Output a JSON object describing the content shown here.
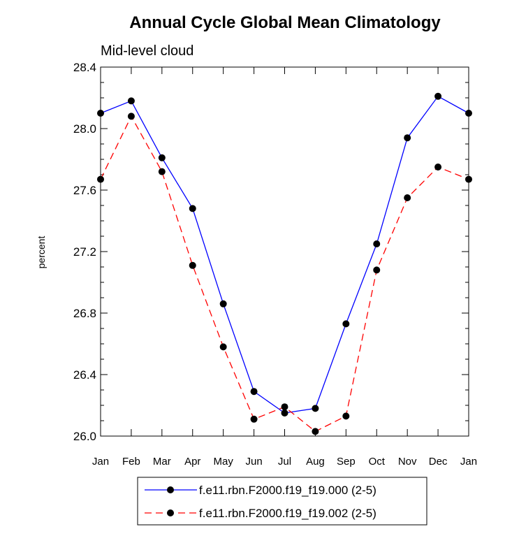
{
  "chart_data": {
    "type": "line",
    "title": "Annual Cycle Global Mean Climatology",
    "subtitle": "Mid-level cloud",
    "xlabel": "",
    "ylabel": "percent",
    "categories": [
      "Jan",
      "Feb",
      "Mar",
      "Apr",
      "May",
      "Jun",
      "Jul",
      "Aug",
      "Sep",
      "Oct",
      "Nov",
      "Dec",
      "Jan"
    ],
    "ylim": [
      26.0,
      28.4
    ],
    "yticks": [
      "26.0",
      "26.4",
      "26.8",
      "27.2",
      "27.6",
      "28.0",
      "28.4"
    ],
    "grid": false,
    "legend_position": "bottom-center",
    "series": [
      {
        "name": "f.e11.rbn.F2000.f19_f19.000 (2-5)",
        "color": "#0000ff",
        "dash": "solid",
        "marker": "filled-circle",
        "values": [
          28.1,
          28.18,
          27.81,
          27.48,
          26.86,
          26.29,
          26.15,
          26.18,
          26.73,
          27.25,
          27.94,
          28.21,
          28.1
        ]
      },
      {
        "name": "f.e11.rbn.F2000.f19_f19.002 (2-5)",
        "color": "#ff0000",
        "dash": "dashed",
        "marker": "filled-circle",
        "values": [
          27.67,
          28.08,
          27.72,
          27.11,
          26.58,
          26.11,
          26.19,
          26.03,
          26.13,
          27.08,
          27.55,
          27.75,
          27.67
        ]
      }
    ]
  }
}
